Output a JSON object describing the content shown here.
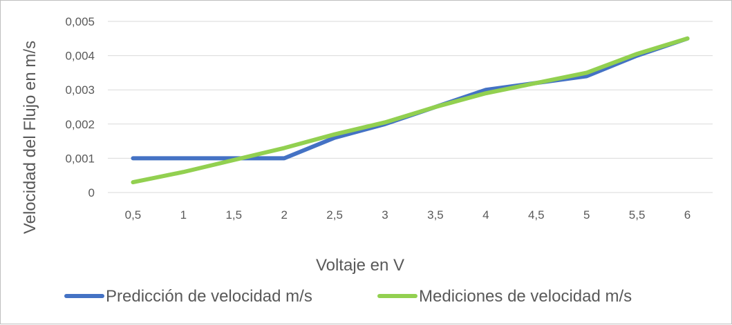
{
  "chart_data": {
    "type": "line",
    "title": "",
    "xlabel": "Voltaje en V",
    "ylabel": "Velocidad del Flujo en m/s",
    "categories": [
      "0,5",
      "1",
      "1,5",
      "2",
      "2,5",
      "3",
      "3,5",
      "4",
      "4,5",
      "5",
      "5,5",
      "6"
    ],
    "y_tick_labels": [
      "0",
      "0,001",
      "0,002",
      "0,003",
      "0,004",
      "0,005"
    ],
    "y_ticks": [
      0,
      0.001,
      0.002,
      0.003,
      0.004,
      0.005
    ],
    "ylim": [
      0,
      0.005
    ],
    "grid": "horizontal",
    "legend_position": "bottom",
    "series": [
      {
        "name": "Predicción de velocidad m/s",
        "color": "#4472C4",
        "values": [
          0.001,
          0.001,
          0.001,
          0.001,
          0.0016,
          0.002,
          0.0025,
          0.003,
          0.0032,
          0.0034,
          0.004,
          0.0045
        ]
      },
      {
        "name": "Mediciones de velocidad m/s",
        "color": "#92D050",
        "values": [
          0.0003,
          0.0006,
          0.00095,
          0.0013,
          0.0017,
          0.00205,
          0.0025,
          0.0029,
          0.0032,
          0.0035,
          0.00405,
          0.0045
        ]
      }
    ]
  }
}
